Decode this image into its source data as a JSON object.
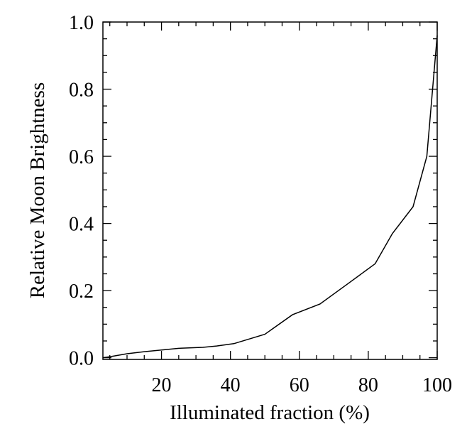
{
  "chart_data": {
    "type": "line",
    "xlabel": "Illuminated fraction (%)",
    "ylabel": "Relative Moon Brightness",
    "xlim": [
      3,
      100
    ],
    "ylim": [
      -0.005,
      1.0
    ],
    "x_ticks": [
      20,
      40,
      60,
      80,
      100
    ],
    "y_ticks": [
      0.0,
      0.2,
      0.4,
      0.6,
      0.8,
      1.0
    ],
    "x_tick_labels": [
      "20",
      "40",
      "60",
      "80",
      "100"
    ],
    "y_tick_labels": [
      "0.0",
      "0.2",
      "0.4",
      "0.6",
      "0.8",
      "1.0"
    ],
    "grid": false,
    "series": [
      {
        "x": [
          3,
          5,
          10,
          15,
          20,
          25,
          32,
          36,
          41,
          50,
          58,
          66,
          74,
          82,
          87,
          93,
          97,
          100
        ],
        "y": [
          0.0,
          0.003,
          0.012,
          0.018,
          0.023,
          0.028,
          0.031,
          0.035,
          0.042,
          0.07,
          0.128,
          0.16,
          0.22,
          0.28,
          0.37,
          0.45,
          0.6,
          0.96
        ]
      }
    ]
  }
}
